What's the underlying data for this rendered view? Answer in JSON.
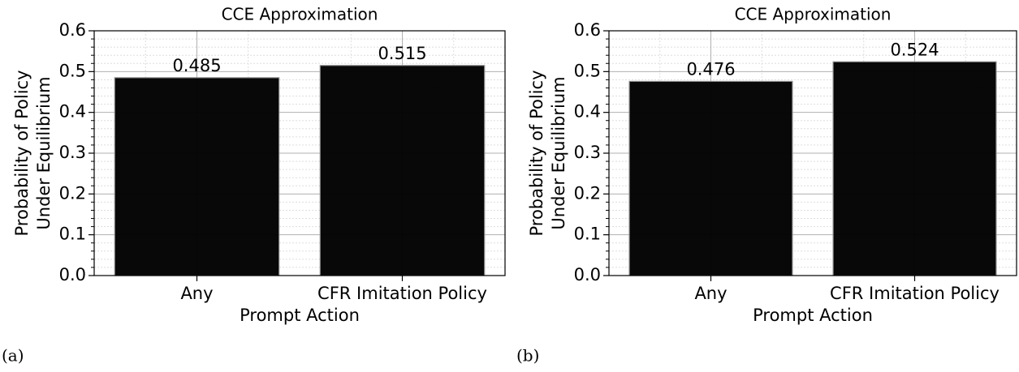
{
  "chart_data": [
    {
      "type": "bar",
      "title": "CCE Approximation",
      "xlabel": "Prompt Action",
      "ylabel": [
        "Probability of Policy",
        "Under Equilibrium"
      ],
      "categories": [
        "Any",
        "CFR Imitation Policy"
      ],
      "values": [
        0.485,
        0.515
      ],
      "color": "#000000",
      "ylim": [
        0,
        0.6
      ],
      "yticks": [
        {
          "value": 0,
          "label": "0.0"
        },
        0.1,
        0.2,
        0.3,
        0.4,
        0.5,
        0.6
      ],
      "grid": true,
      "minor_grid": true,
      "caption": "(a)"
    },
    {
      "type": "bar",
      "title": "CCE Approximation",
      "xlabel": "Prompt Action",
      "ylabel": [
        "Probability of Policy",
        "Under Equilibrium"
      ],
      "categories": [
        "Any",
        "CFR Imitation Policy"
      ],
      "values": [
        0.476,
        0.524
      ],
      "color": "#000000",
      "ylim": [
        0,
        0.6
      ],
      "yticks": [
        {
          "value": 0,
          "label": "0.0"
        },
        0.1,
        0.2,
        0.3,
        0.4,
        0.5,
        0.6
      ],
      "grid": true,
      "minor_grid": true,
      "caption": "(b)"
    }
  ]
}
